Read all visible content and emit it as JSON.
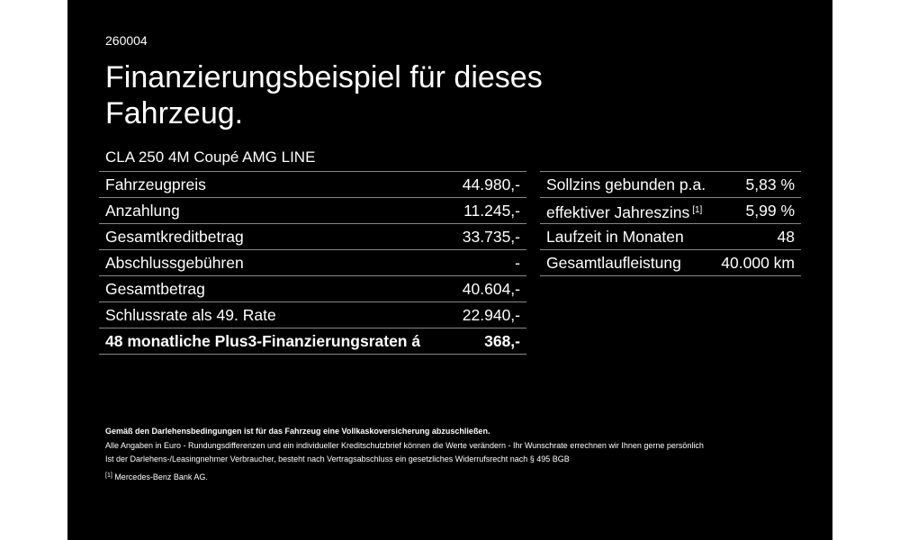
{
  "code": "260004",
  "title": "Finanzierungsbeispiel für dieses Fahrzeug.",
  "subtitle": "CLA 250 4M Coupé AMG LINE",
  "left_table": {
    "rows": [
      [
        "Fahrzeugpreis",
        "44.980,-"
      ],
      [
        "Anzahlung",
        "11.245,-"
      ],
      [
        "Gesamtkreditbetrag",
        "33.735,-"
      ],
      [
        "Abschlussgebühren",
        "-"
      ],
      [
        "Gesamtbetrag",
        "40.604,-"
      ],
      [
        "Schlussrate als 49. Rate",
        "22.940,-"
      ],
      [
        "48 monatliche Plus3-Finanzierungsraten á",
        "368,-"
      ]
    ]
  },
  "right_table": {
    "rows": [
      {
        "label": "Sollzins gebunden p.a.",
        "value": "5,83 %"
      },
      {
        "label": "effektiver Jahreszins",
        "note": "[1]",
        "value": "5,99 %"
      },
      {
        "label": "Laufzeit in Monaten",
        "value": "48"
      },
      {
        "label": "Gesamtlaufleistung",
        "value": "40.000 km"
      }
    ]
  },
  "footer": {
    "bold": "Gemäß den Darlehensbedingungen ist für das Fahrzeug eine Vollkaskoversicherung abzuschließen.",
    "lines": [
      "Alle Angaben in Euro - Rundungsdifferenzen und ein individueller Kreditschutzbrief können die Werte verändern - Ihr Wunschrate errechnen wir Ihnen gerne persönlich",
      "Ist der Darlehens-/Leasingnehmer Verbraucher, besteht nach Vertragsabschluss ein gesetzliches Widerrufsrecht nach § 495 BGB"
    ],
    "footnote": {
      "mark": "[1]",
      "text": "Mercedes-Benz Bank AG."
    }
  }
}
